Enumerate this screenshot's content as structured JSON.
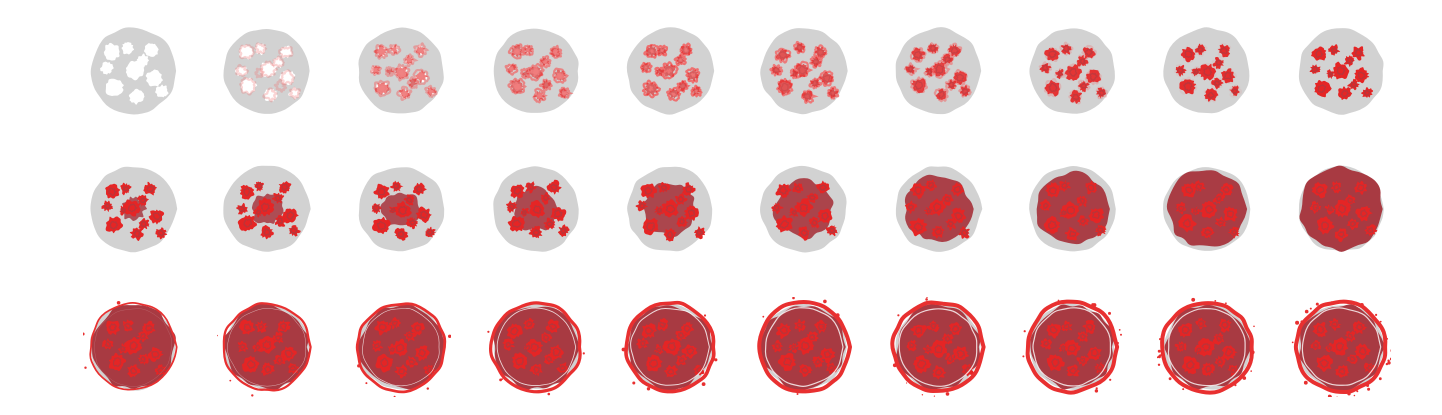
{
  "sheet": {
    "rows": 3,
    "columns": 10,
    "frame_count": 30,
    "colors": {
      "background": "#ffffff",
      "disc": "#d2d2d2",
      "hole": "#ffffff",
      "blood_light": "#ee7070",
      "blood": "#e52525",
      "blood_dark": "#a83a42",
      "rim": "#e83030"
    },
    "frames": [
      {
        "white": 1.0,
        "pink": 0.0,
        "red": 0.0,
        "fill": 0.0,
        "rim": 0.0,
        "splatter": 0
      },
      {
        "white": 0.85,
        "pink": 0.3,
        "red": 0.0,
        "fill": 0.0,
        "rim": 0.0,
        "splatter": 0
      },
      {
        "white": 0.6,
        "pink": 0.55,
        "red": 0.05,
        "fill": 0.0,
        "rim": 0.0,
        "splatter": 0
      },
      {
        "white": 0.4,
        "pink": 0.8,
        "red": 0.1,
        "fill": 0.0,
        "rim": 0.0,
        "splatter": 0
      },
      {
        "white": 0.15,
        "pink": 1.0,
        "red": 0.2,
        "fill": 0.0,
        "rim": 0.0,
        "splatter": 0
      },
      {
        "white": 0.0,
        "pink": 0.9,
        "red": 0.4,
        "fill": 0.0,
        "rim": 0.0,
        "splatter": 0
      },
      {
        "white": 0.0,
        "pink": 0.6,
        "red": 0.6,
        "fill": 0.0,
        "rim": 0.0,
        "splatter": 0
      },
      {
        "white": 0.0,
        "pink": 0.3,
        "red": 0.8,
        "fill": 0.0,
        "rim": 0.0,
        "splatter": 0
      },
      {
        "white": 0.0,
        "pink": 0.1,
        "red": 0.9,
        "fill": 0.0,
        "rim": 0.0,
        "splatter": 0
      },
      {
        "white": 0.0,
        "pink": 0.0,
        "red": 1.0,
        "fill": 0.0,
        "rim": 0.0,
        "splatter": 0
      },
      {
        "white": 0.0,
        "pink": 0.0,
        "red": 1.0,
        "fill": 0.05,
        "rim": 0.0,
        "splatter": 0
      },
      {
        "white": 0.0,
        "pink": 0.0,
        "red": 1.0,
        "fill": 0.15,
        "rim": 0.0,
        "splatter": 0
      },
      {
        "white": 0.0,
        "pink": 0.0,
        "red": 1.0,
        "fill": 0.25,
        "rim": 0.0,
        "splatter": 0
      },
      {
        "white": 0.0,
        "pink": 0.0,
        "red": 1.0,
        "fill": 0.38,
        "rim": 0.0,
        "splatter": 0
      },
      {
        "white": 0.0,
        "pink": 0.0,
        "red": 1.0,
        "fill": 0.5,
        "rim": 0.0,
        "splatter": 0
      },
      {
        "white": 0.0,
        "pink": 0.0,
        "red": 1.0,
        "fill": 0.6,
        "rim": 0.0,
        "splatter": 0
      },
      {
        "white": 0.0,
        "pink": 0.0,
        "red": 1.0,
        "fill": 0.72,
        "rim": 0.0,
        "splatter": 0
      },
      {
        "white": 0.0,
        "pink": 0.0,
        "red": 1.0,
        "fill": 0.82,
        "rim": 0.0,
        "splatter": 0
      },
      {
        "white": 0.0,
        "pink": 0.0,
        "red": 1.0,
        "fill": 0.92,
        "rim": 0.0,
        "splatter": 0
      },
      {
        "white": 0.0,
        "pink": 0.0,
        "red": 1.0,
        "fill": 1.0,
        "rim": 0.0,
        "splatter": 0
      },
      {
        "white": 0.0,
        "pink": 0.0,
        "red": 1.0,
        "fill": 1.0,
        "rim": 0.1,
        "splatter": 3
      },
      {
        "white": 0.0,
        "pink": 0.0,
        "red": 1.0,
        "fill": 1.0,
        "rim": 0.3,
        "splatter": 4
      },
      {
        "white": 0.0,
        "pink": 0.0,
        "red": 1.0,
        "fill": 1.0,
        "rim": 0.5,
        "splatter": 5
      },
      {
        "white": 0.0,
        "pink": 0.0,
        "red": 1.0,
        "fill": 1.0,
        "rim": 0.7,
        "splatter": 5
      },
      {
        "white": 0.0,
        "pink": 0.0,
        "red": 1.0,
        "fill": 1.0,
        "rim": 0.85,
        "splatter": 6
      },
      {
        "white": 0.0,
        "pink": 0.0,
        "red": 1.0,
        "fill": 1.0,
        "rim": 1.0,
        "splatter": 6
      },
      {
        "white": 0.0,
        "pink": 0.0,
        "red": 1.0,
        "fill": 1.0,
        "rim": 1.0,
        "splatter": 8
      },
      {
        "white": 0.0,
        "pink": 0.0,
        "red": 1.0,
        "fill": 1.0,
        "rim": 1.0,
        "splatter": 12
      },
      {
        "white": 0.0,
        "pink": 0.0,
        "red": 1.0,
        "fill": 1.0,
        "rim": 1.0,
        "splatter": 18
      },
      {
        "white": 0.0,
        "pink": 0.0,
        "red": 1.0,
        "fill": 1.0,
        "rim": 1.0,
        "splatter": 26
      }
    ]
  }
}
